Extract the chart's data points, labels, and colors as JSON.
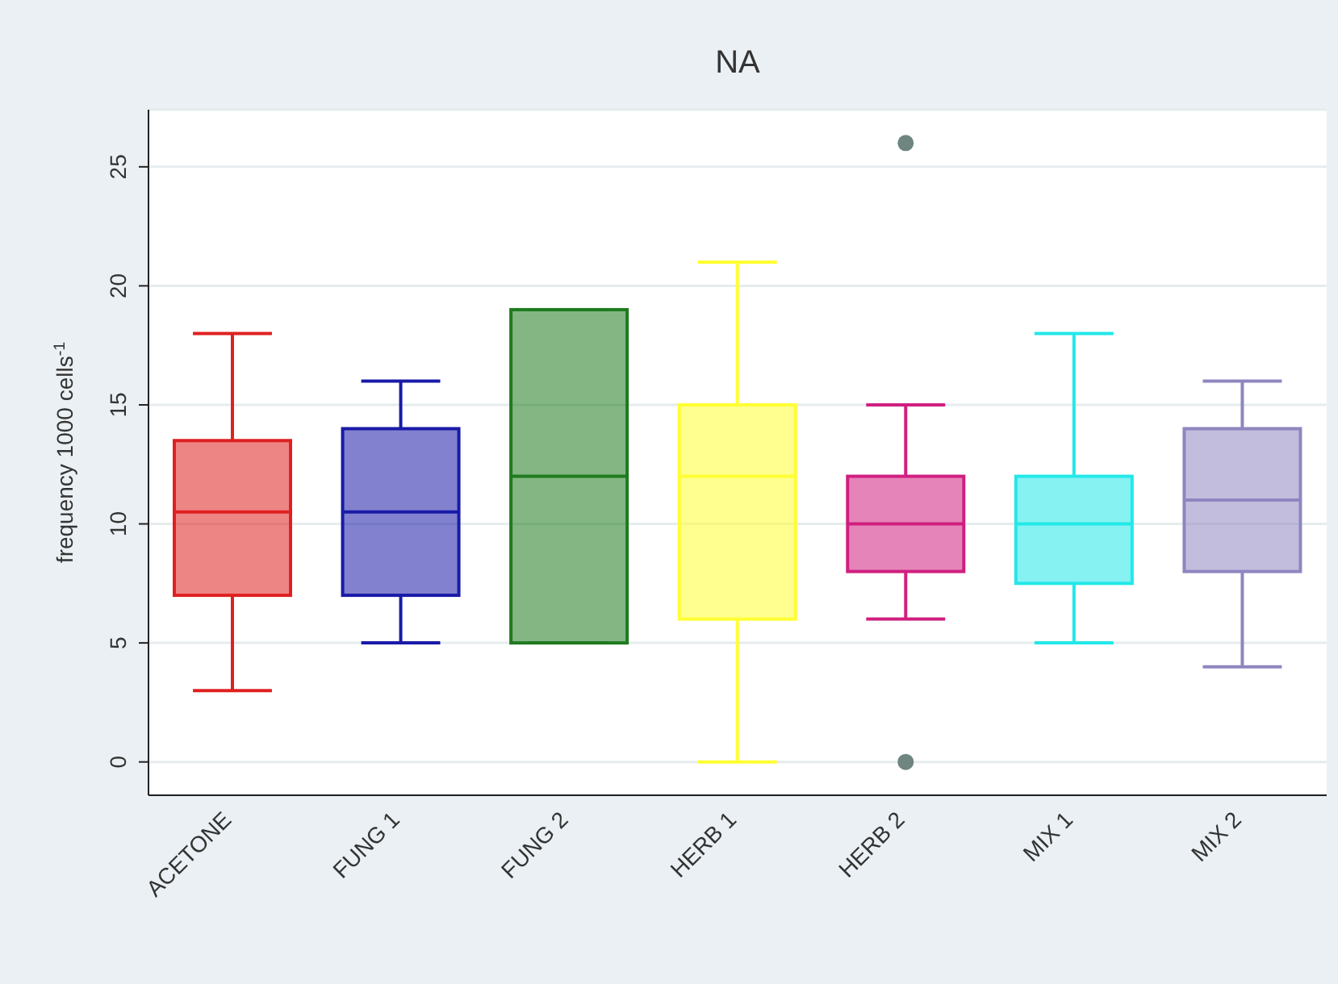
{
  "chart_data": {
    "type": "box",
    "title": "NA",
    "ylabel": "frequency 1000 cells$^{-1}$",
    "categories": [
      "ACETONE",
      "FUNG 1",
      "FUNG 2",
      "HERB 1",
      "HERB 2",
      "MIX 1",
      "MIX 2"
    ],
    "colors": [
      "#e02020",
      "#1a1aa8",
      "#1e7a1e",
      "#ffff33",
      "#d01f80",
      "#22e8e8",
      "#8f86c0"
    ],
    "boxes": [
      {
        "low": 3,
        "q1": 7,
        "median": 10.5,
        "q3": 13.5,
        "high": 18
      },
      {
        "low": 5,
        "q1": 7,
        "median": 10.5,
        "q3": 14,
        "high": 16
      },
      {
        "low": 5,
        "q1": 5,
        "median": 12,
        "q3": 19,
        "high": 19
      },
      {
        "low": 0,
        "q1": 6,
        "median": 12,
        "q3": 15,
        "high": 21
      },
      {
        "low": 6,
        "q1": 8,
        "median": 10,
        "q3": 12,
        "high": 15,
        "outliers": [
          0,
          26
        ]
      },
      {
        "low": 5,
        "q1": 7.5,
        "median": 10,
        "q3": 12,
        "high": 18
      },
      {
        "low": 4,
        "q1": 8,
        "median": 11,
        "q3": 14,
        "high": 16
      }
    ],
    "ylim": [
      -1.4,
      27.4
    ],
    "yticks": [
      0,
      5,
      10,
      15,
      20,
      25
    ],
    "grid": "y"
  }
}
